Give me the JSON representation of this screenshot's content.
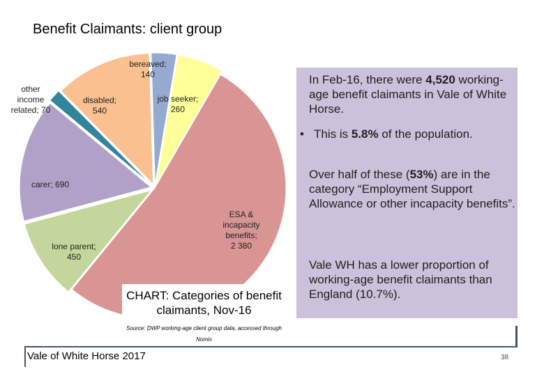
{
  "slide": {
    "title": "Benefit Claimants: client group",
    "footer": "Vale of White Horse 2017",
    "page_number": "38"
  },
  "chart_data": {
    "type": "pie",
    "title": "CHART: Categories of benefit claimants, Nov-16",
    "source": "Source: DWP working-age client group data, accessed through Nomis",
    "categories": [
      "bereaved",
      "job seeker",
      "ESA & incapacity benefits",
      "lone parent",
      "carer",
      "other income related",
      "disabled"
    ],
    "values": [
      140,
      260,
      2380,
      450,
      690,
      70,
      540
    ],
    "labels": [
      "bereaved; 140",
      "job seeker; 260",
      "ESA & incapacity benefits; 2 380",
      "lone parent; 450",
      "carer; 690",
      "other income related; 70",
      "disabled; 540"
    ],
    "colors": [
      "#95a9d1",
      "#ffff99",
      "#d99594",
      "#c3d69b",
      "#b1a0c7",
      "#31859c",
      "#fac090"
    ]
  },
  "info": {
    "para1_prefix": "In Feb-16, there were ",
    "para1_bold": "4,520",
    "para1_suffix": " working-age benefit claimants in Vale of White Horse.",
    "bullet_symbol": "•",
    "bullet_prefix": "This is ",
    "bullet_bold": "5.8%",
    "bullet_suffix": " of the population.",
    "para2_prefix": "Over half of these (",
    "para2_bold": "53%",
    "para2_suffix": ") are in the category “Employment Support Allowance or other incapacity benefits”.",
    "para3": "Vale WH has a lower proportion of working-age benefit claimants than England (10.7%)."
  }
}
